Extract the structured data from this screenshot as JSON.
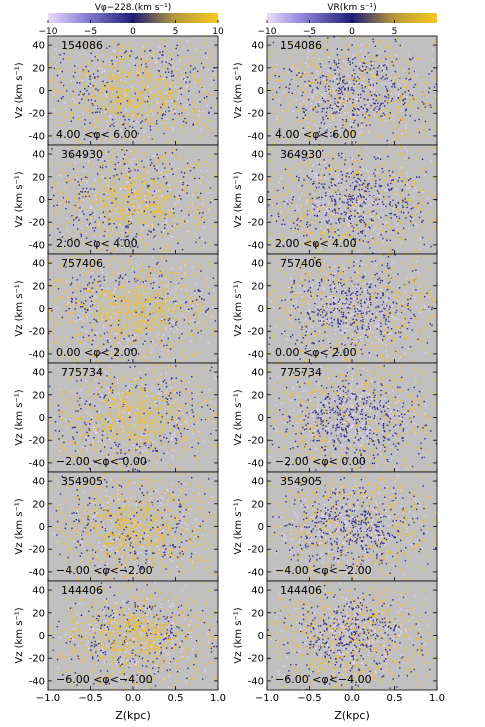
{
  "colors": {
    "panel_bg": "#c0c0c0",
    "low": "#e3d4f5",
    "mid": "#2a2a8c",
    "high": "#f3bd21"
  },
  "colorbars": [
    {
      "title": "Vφ−228.(km s⁻¹)",
      "ticks": [
        "−10",
        "−5",
        "0",
        "5",
        "10"
      ]
    },
    {
      "title": "VR(km s⁻¹)",
      "ticks": [
        "−10",
        "−5",
        "0",
        "5"
      ]
    }
  ],
  "chart_data": {
    "type": "scatter",
    "description_of_layout": "2 columns x 6 rows of Z vs Vz scatter panels colored by velocity",
    "xlabel": "Z(kpc)",
    "ylabel": "Vz (km s⁻¹)",
    "xlim": [
      -1.0,
      1.0
    ],
    "ylim": [
      -48,
      48
    ],
    "xticks": [
      "−1.0",
      "−0.5",
      "0.0",
      "0.5",
      "1.0"
    ],
    "yticks": [
      40,
      20,
      0,
      -20,
      -40
    ],
    "columns": [
      {
        "color_by": "Vφ−228",
        "color_range": [
          -10,
          10
        ]
      },
      {
        "color_by": "VR",
        "color_range": [
          -10,
          10
        ]
      }
    ],
    "rows": [
      {
        "count": "154086",
        "phi_label": "4.00 <φ< 6.00",
        "col0_core": 0.85,
        "col1_core": 0.3,
        "spread": 1.0
      },
      {
        "count": "364930",
        "phi_label": "2.00 <φ< 4.00",
        "col0_core": 0.8,
        "col1_core": 0.2,
        "spread": 1.0
      },
      {
        "count": "757406",
        "phi_label": "0.00 <φ< 2.00",
        "col0_core": 0.9,
        "col1_core": 0.15,
        "spread": 1.0
      },
      {
        "count": "775734",
        "phi_label": "−2.00 <φ< 0.00",
        "col0_core": 0.85,
        "col1_core": 0.15,
        "spread": 1.0
      },
      {
        "count": "354905",
        "phi_label": "−4.00 <φ<−2.00",
        "col0_core": 0.8,
        "col1_core": 0.2,
        "spread": 0.95
      },
      {
        "count": "144406",
        "phi_label": "−6.00 <φ<−4.00",
        "col0_core": 0.75,
        "col1_core": 0.3,
        "spread": 0.85
      }
    ]
  }
}
